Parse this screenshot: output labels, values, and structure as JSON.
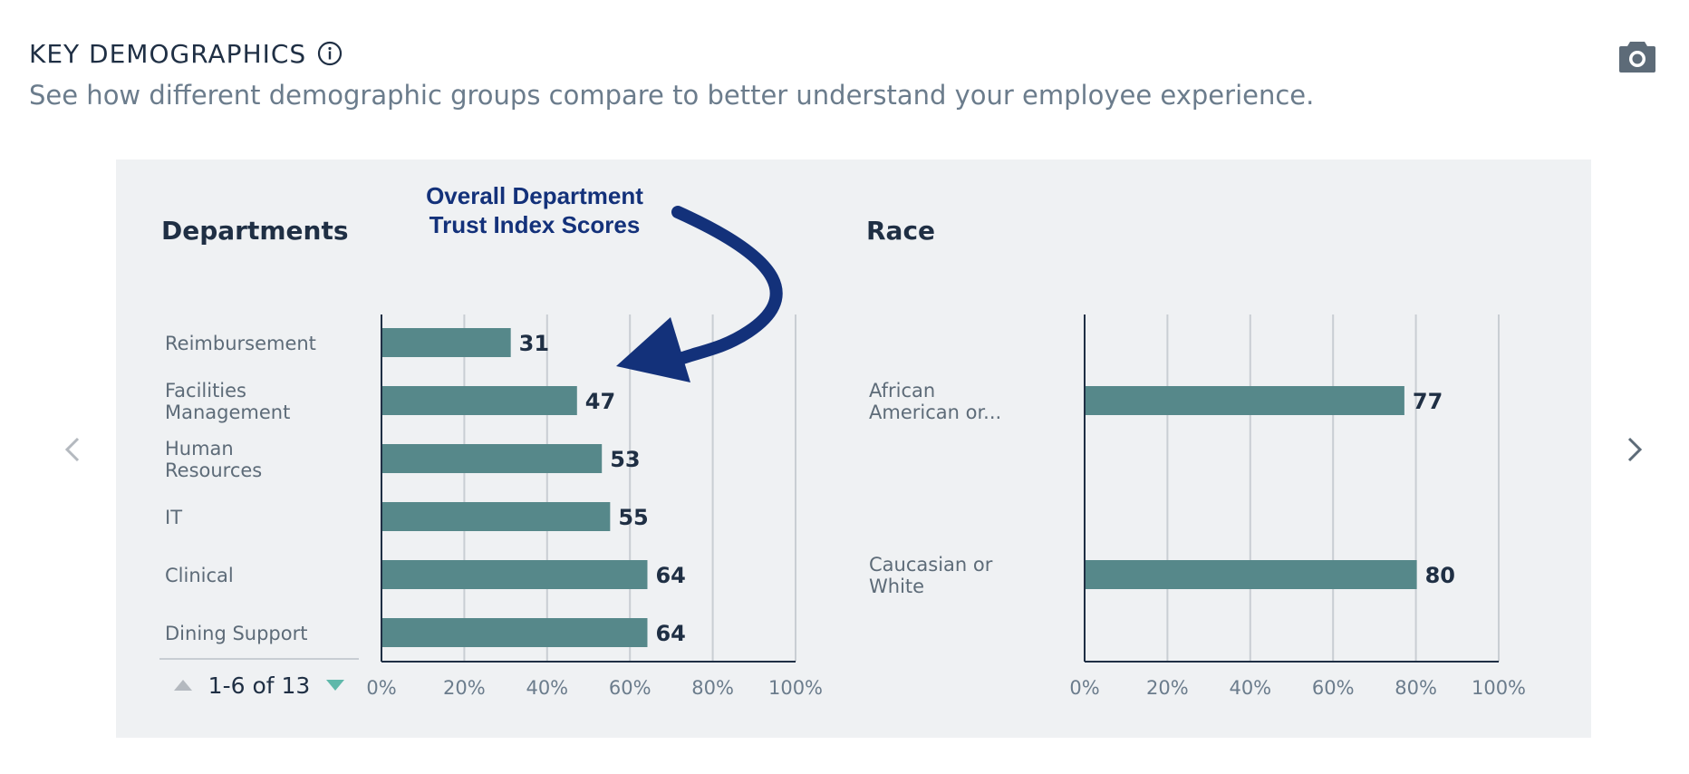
{
  "header": {
    "title": "KEY DEMOGRAPHICS",
    "subtitle": "See how different demographic groups compare to better understand your employee experience."
  },
  "annotation": {
    "line1": "Overall Department",
    "line2": "Trust Index Scores"
  },
  "pager": {
    "label": "1-6 of 13"
  },
  "colors": {
    "bar": "#56888a",
    "accent": "#5fb8aa",
    "annotation": "#13317a"
  },
  "chart_data": [
    {
      "type": "bar",
      "orientation": "horizontal",
      "title": "Departments",
      "categories": [
        [
          "Reimbursement"
        ],
        [
          "Facilities",
          "Management"
        ],
        [
          "Human",
          "Resources"
        ],
        [
          "IT"
        ],
        [
          "Clinical"
        ],
        [
          "Dining Support"
        ]
      ],
      "values": [
        31,
        47,
        53,
        55,
        64,
        64
      ],
      "xlim": [
        0,
        100
      ],
      "xticks": [
        "0%",
        "20%",
        "40%",
        "60%",
        "80%",
        "100%"
      ],
      "grid": true
    },
    {
      "type": "bar",
      "orientation": "horizontal",
      "title": "Race",
      "categories": [
        [
          "African",
          "American or..."
        ],
        [
          "Caucasian or",
          "White"
        ]
      ],
      "values": [
        77,
        80
      ],
      "xlim": [
        0,
        100
      ],
      "xticks": [
        "0%",
        "20%",
        "40%",
        "60%",
        "80%",
        "100%"
      ],
      "grid": true
    }
  ]
}
